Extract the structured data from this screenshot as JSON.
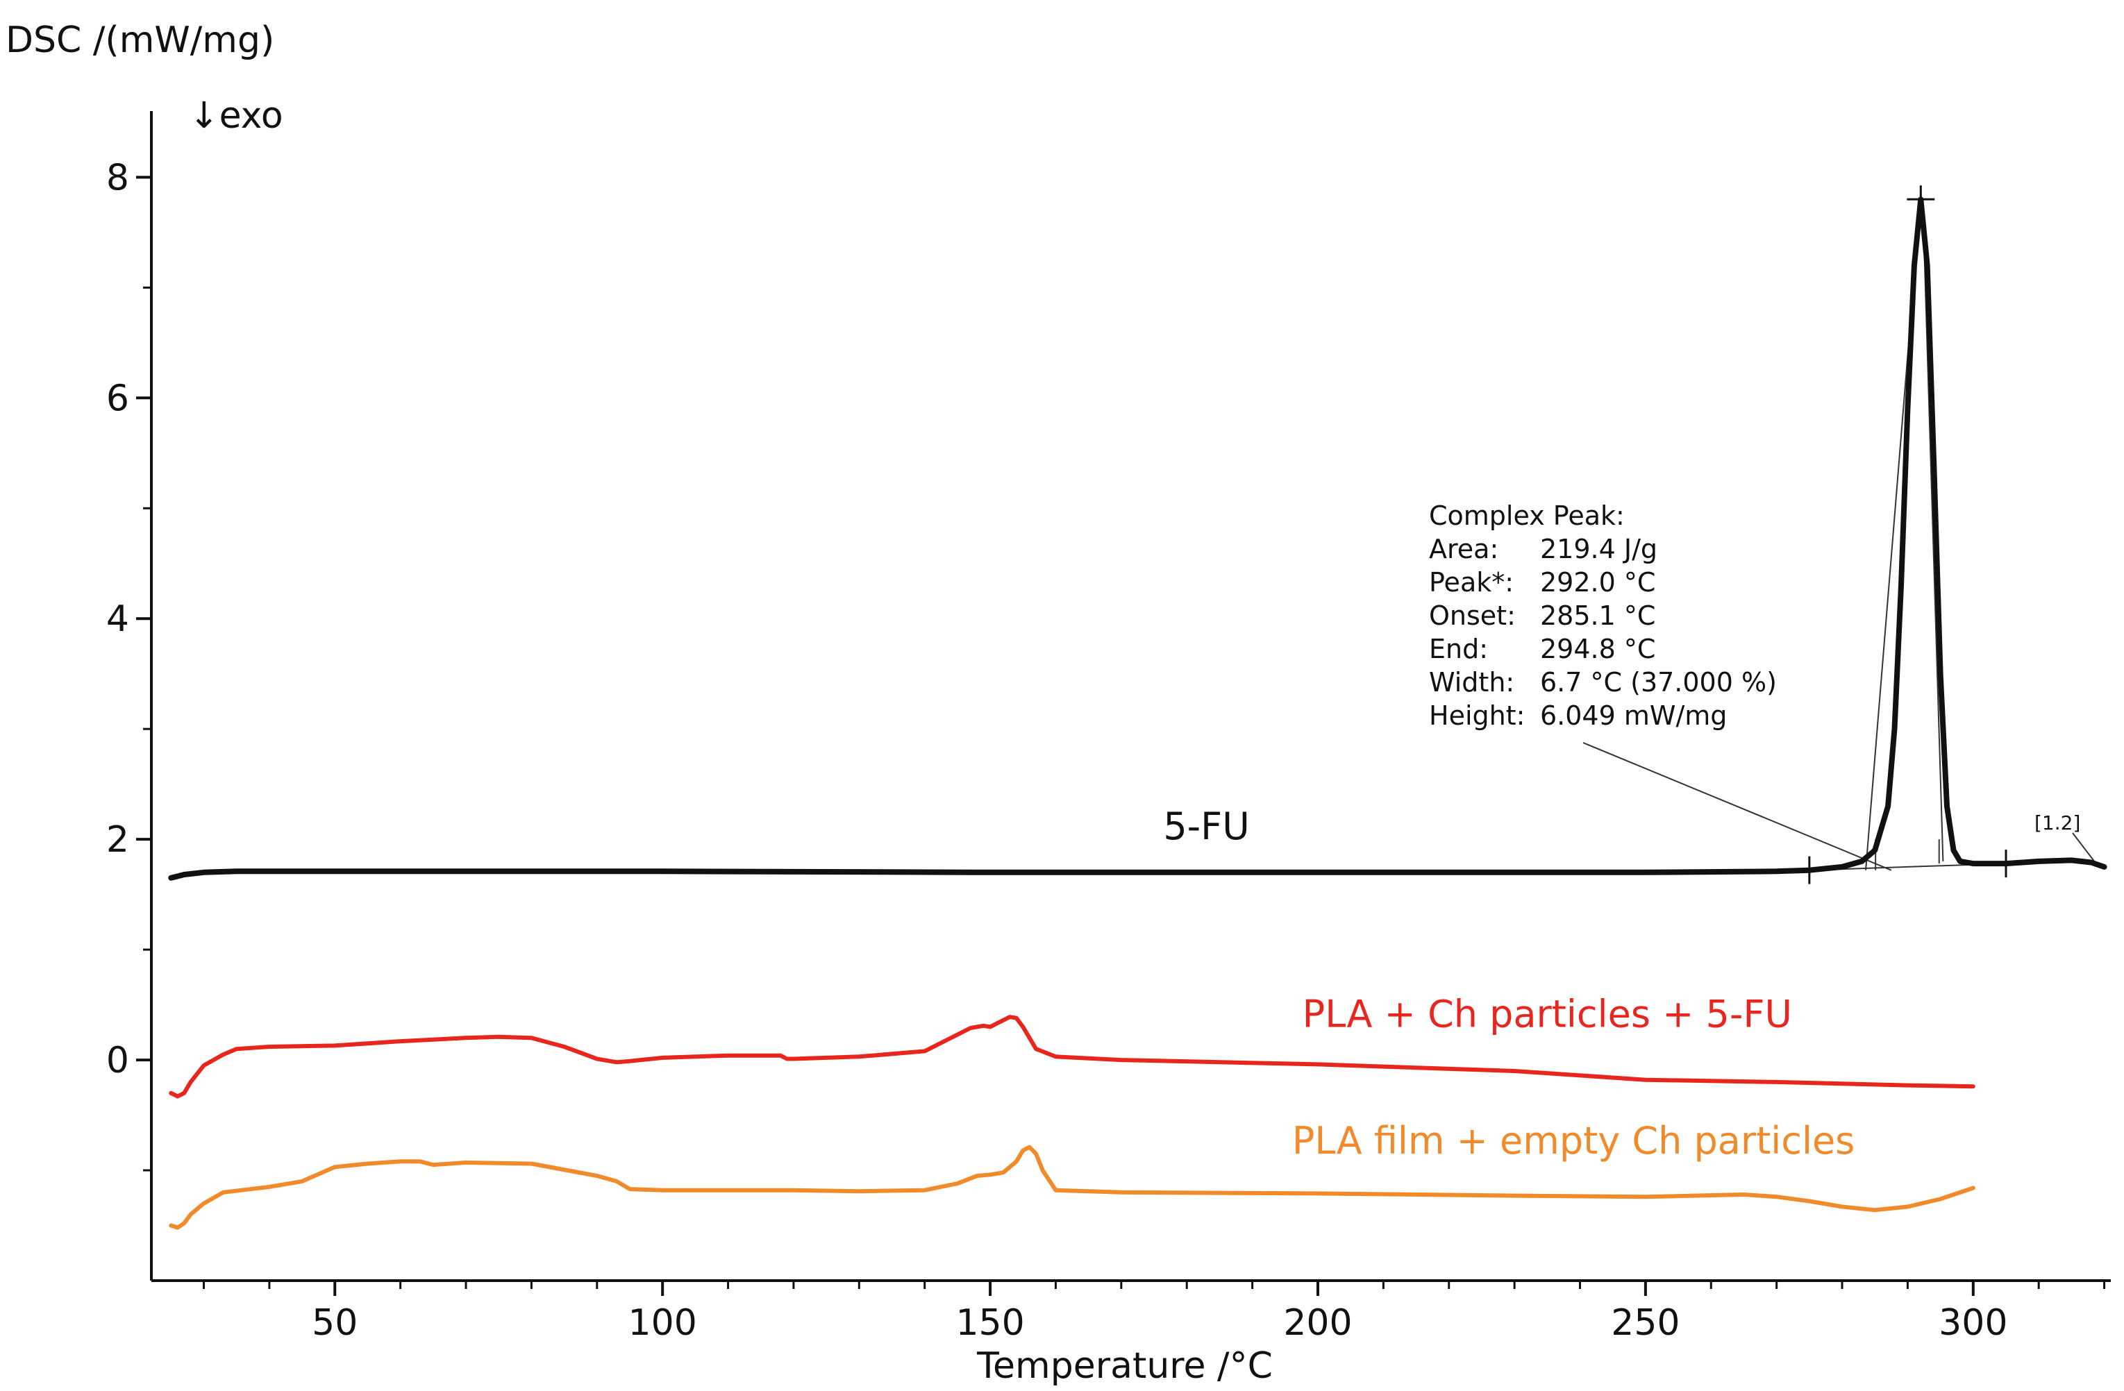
{
  "chart_data": {
    "type": "line",
    "ylabel": "DSC /(mW/mg)",
    "xlabel": "Temperature /°C",
    "exo_label": "↓exo",
    "xlim": [
      22,
      321
    ],
    "ylim": [
      -2.0,
      8.6
    ],
    "x_ticks": [
      50,
      100,
      150,
      200,
      250,
      300
    ],
    "x_minor_ticks": [
      30,
      40,
      60,
      70,
      80,
      90,
      110,
      120,
      130,
      140,
      160,
      170,
      180,
      190,
      210,
      220,
      230,
      240,
      260,
      270,
      280,
      290,
      310,
      320
    ],
    "y_ticks": [
      0,
      2,
      4,
      6,
      8
    ],
    "y_minor_ticks": [
      -1,
      1,
      3,
      5,
      7
    ],
    "grid": false,
    "series": [
      {
        "name": "5-FU",
        "color": "#111111",
        "x": [
          25,
          27,
          30,
          35,
          40,
          60,
          100,
          150,
          200,
          250,
          270,
          275,
          280,
          283,
          285,
          287,
          288,
          289,
          290,
          291,
          292,
          293,
          294,
          295,
          296,
          297,
          298,
          300,
          305,
          310,
          315,
          318,
          320
        ],
        "y": [
          1.65,
          1.68,
          1.7,
          1.71,
          1.71,
          1.71,
          1.71,
          1.7,
          1.7,
          1.7,
          1.71,
          1.72,
          1.75,
          1.8,
          1.9,
          2.3,
          3.0,
          4.3,
          5.9,
          7.2,
          7.8,
          7.2,
          5.4,
          3.5,
          2.3,
          1.9,
          1.8,
          1.78,
          1.78,
          1.8,
          1.81,
          1.79,
          1.75
        ]
      },
      {
        "name": "PLA + Ch particles + 5-FU",
        "color": "#e8261e",
        "x": [
          25,
          26,
          27,
          28,
          30,
          33,
          35,
          40,
          50,
          60,
          70,
          75,
          80,
          85,
          90,
          93,
          95,
          100,
          110,
          118,
          119,
          120,
          130,
          140,
          144,
          147,
          149,
          150,
          151,
          153,
          154,
          155,
          157,
          160,
          170,
          200,
          230,
          250,
          270,
          290,
          300
        ],
        "y": [
          -0.3,
          -0.33,
          -0.3,
          -0.2,
          -0.05,
          0.05,
          0.1,
          0.12,
          0.13,
          0.17,
          0.2,
          0.21,
          0.2,
          0.12,
          0.01,
          -0.02,
          -0.01,
          0.02,
          0.04,
          0.04,
          0.01,
          0.01,
          0.03,
          0.08,
          0.2,
          0.29,
          0.31,
          0.3,
          0.33,
          0.39,
          0.38,
          0.3,
          0.1,
          0.03,
          0.0,
          -0.04,
          -0.1,
          -0.18,
          -0.2,
          -0.23,
          -0.24
        ]
      },
      {
        "name": "PLA film + empty Ch particles",
        "color": "#f08a2a",
        "x": [
          25,
          26,
          27,
          28,
          30,
          33,
          40,
          45,
          50,
          55,
          60,
          63,
          65,
          70,
          80,
          90,
          93,
          95,
          100,
          120,
          130,
          140,
          145,
          148,
          150,
          152,
          154,
          155,
          156,
          157,
          158,
          160,
          170,
          200,
          230,
          250,
          265,
          270,
          275,
          280,
          285,
          290,
          295,
          300
        ],
        "y": [
          -1.5,
          -1.52,
          -1.48,
          -1.4,
          -1.3,
          -1.2,
          -1.15,
          -1.1,
          -0.97,
          -0.94,
          -0.92,
          -0.92,
          -0.95,
          -0.93,
          -0.94,
          -1.05,
          -1.1,
          -1.17,
          -1.18,
          -1.18,
          -1.19,
          -1.18,
          -1.12,
          -1.05,
          -1.04,
          -1.02,
          -0.92,
          -0.82,
          -0.79,
          -0.85,
          -1.0,
          -1.18,
          -1.2,
          -1.21,
          -1.23,
          -1.24,
          -1.22,
          -1.24,
          -1.28,
          -1.33,
          -1.36,
          -1.33,
          -1.26,
          -1.16
        ]
      }
    ],
    "labels": [
      {
        "text": "5-FU",
        "color": "#111111",
        "x": 183,
        "y": 2.0
      },
      {
        "text": "PLA + Ch particles + 5-FU",
        "color": "#e8261e",
        "x": 235,
        "y": 0.3
      },
      {
        "text": "PLA film + empty Ch particles",
        "color": "#f08a2a",
        "x": 239,
        "y": -0.85
      }
    ],
    "annotation": {
      "header": "Complex Peak:",
      "rows": [
        {
          "key": "Area:",
          "value": "219.4 J/g"
        },
        {
          "key": "Peak*:",
          "value": "292.0 °C"
        },
        {
          "key": "Onset:",
          "value": "285.1 °C"
        },
        {
          "key": "End:",
          "value": "294.8 °C"
        },
        {
          "key": "Width:",
          "value": "6.7 °C (37.000 %)"
        },
        {
          "key": "Height:",
          "value": "6.049 mW/mg"
        }
      ],
      "tag": "[1.2]",
      "peak_marker": {
        "x": 292.0,
        "y": 7.8
      },
      "baseline_markers": [
        {
          "x": 275,
          "y": 1.72
        },
        {
          "x": 305,
          "y": 1.78
        }
      ],
      "onset": 285.1,
      "end": 294.8
    }
  }
}
